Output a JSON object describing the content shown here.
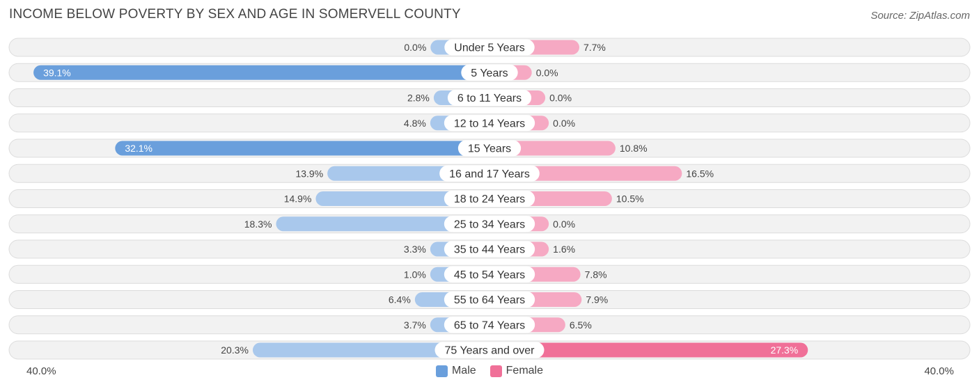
{
  "header": {
    "title": "INCOME BELOW POVERTY BY SEX AND AGE IN SOMERVELL COUNTY",
    "source": "Source: ZipAtlas.com"
  },
  "axis": {
    "left_label": "40.0%",
    "right_label": "40.0%"
  },
  "legend": {
    "male_label": "Male",
    "female_label": "Female"
  },
  "colors": {
    "male_strong": "#6a9fdc",
    "male_light": "#a9c8ec",
    "female_strong": "#f07098",
    "female_light": "#f6a9c3",
    "track": "#f2f2f2",
    "track_border": "#dcdcdc"
  },
  "chart_data": {
    "type": "bar",
    "orientation": "horizontal-diverging",
    "title": "INCOME BELOW POVERTY BY SEX AND AGE IN SOMERVELL COUNTY",
    "xlim": [
      -40,
      40
    ],
    "categories": [
      "Under 5 Years",
      "5 Years",
      "6 to 11 Years",
      "12 to 14 Years",
      "15 Years",
      "16 and 17 Years",
      "18 to 24 Years",
      "25 to 34 Years",
      "35 to 44 Years",
      "45 to 54 Years",
      "55 to 64 Years",
      "65 to 74 Years",
      "75 Years and over"
    ],
    "series": [
      {
        "name": "Male",
        "values": [
          0.0,
          39.1,
          2.8,
          4.8,
          32.1,
          13.9,
          14.9,
          18.3,
          3.3,
          1.0,
          6.4,
          3.7,
          20.3
        ],
        "labels": [
          "0.0%",
          "39.1%",
          "2.8%",
          "4.8%",
          "32.1%",
          "13.9%",
          "14.9%",
          "18.3%",
          "3.3%",
          "1.0%",
          "6.4%",
          "3.7%",
          "20.3%"
        ]
      },
      {
        "name": "Female",
        "values": [
          7.7,
          0.0,
          0.0,
          0.0,
          10.8,
          16.5,
          10.5,
          0.0,
          1.6,
          7.8,
          7.9,
          6.5,
          27.3
        ],
        "labels": [
          "7.7%",
          "0.0%",
          "0.0%",
          "0.0%",
          "10.8%",
          "16.5%",
          "10.5%",
          "0.0%",
          "1.6%",
          "7.8%",
          "7.9%",
          "6.5%",
          "27.3%"
        ]
      }
    ],
    "legend_position": "bottom-center"
  }
}
